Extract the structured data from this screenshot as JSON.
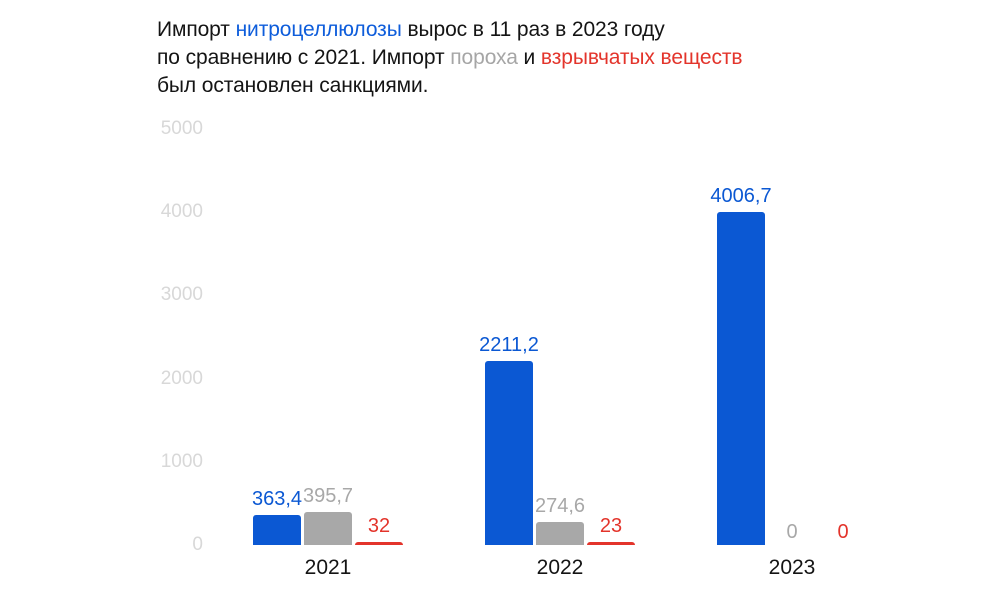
{
  "title": {
    "segments": [
      {
        "text": "Импорт ",
        "color": "#141414"
      },
      {
        "text": "нитроцеллюлозы",
        "color": "#0e5ddb"
      },
      {
        "text": " вырос в 11 раз в 2023 году\nпо сравнению с 2021. Импорт ",
        "color": "#141414"
      },
      {
        "text": "пороха",
        "color": "#a6a6a6"
      },
      {
        "text": " и ",
        "color": "#141414"
      },
      {
        "text": "взрывчатых веществ",
        "color": "#e3342b"
      },
      {
        "text": "\nбыл остановлен санкциями.",
        "color": "#141414"
      }
    ]
  },
  "chart_data": {
    "type": "bar",
    "categories": [
      "2021",
      "2022",
      "2023"
    ],
    "series": [
      {
        "name": "нитроцеллюлоза",
        "color": "#0b58d3",
        "values": [
          363.4,
          2211.2,
          4006.7
        ],
        "value_labels": [
          "363,4",
          "2211,2",
          "4006,7"
        ]
      },
      {
        "name": "порох",
        "color": "#a8a8a8",
        "values": [
          395.7,
          274.6,
          0
        ],
        "value_labels": [
          "395,7",
          "274,6",
          "0"
        ]
      },
      {
        "name": "взрывчатые вещества",
        "color": "#e3342b",
        "values": [
          32,
          23,
          0
        ],
        "value_labels": [
          "32",
          "23",
          "0"
        ]
      }
    ],
    "title": "Импорт нитроцеллюлозы вырос в 11 раз в 2023 году по сравнению с 2021. Импорт пороха и взрывчатых веществ был остановлен санкциями.",
    "xlabel": "",
    "ylabel": "",
    "ylim": [
      0,
      5000
    ],
    "yticks": [
      "0",
      "1000",
      "2000",
      "3000",
      "4000",
      "5000"
    ],
    "grid": false,
    "legend_position": "none",
    "ytick_color": "#d8d8d8"
  }
}
